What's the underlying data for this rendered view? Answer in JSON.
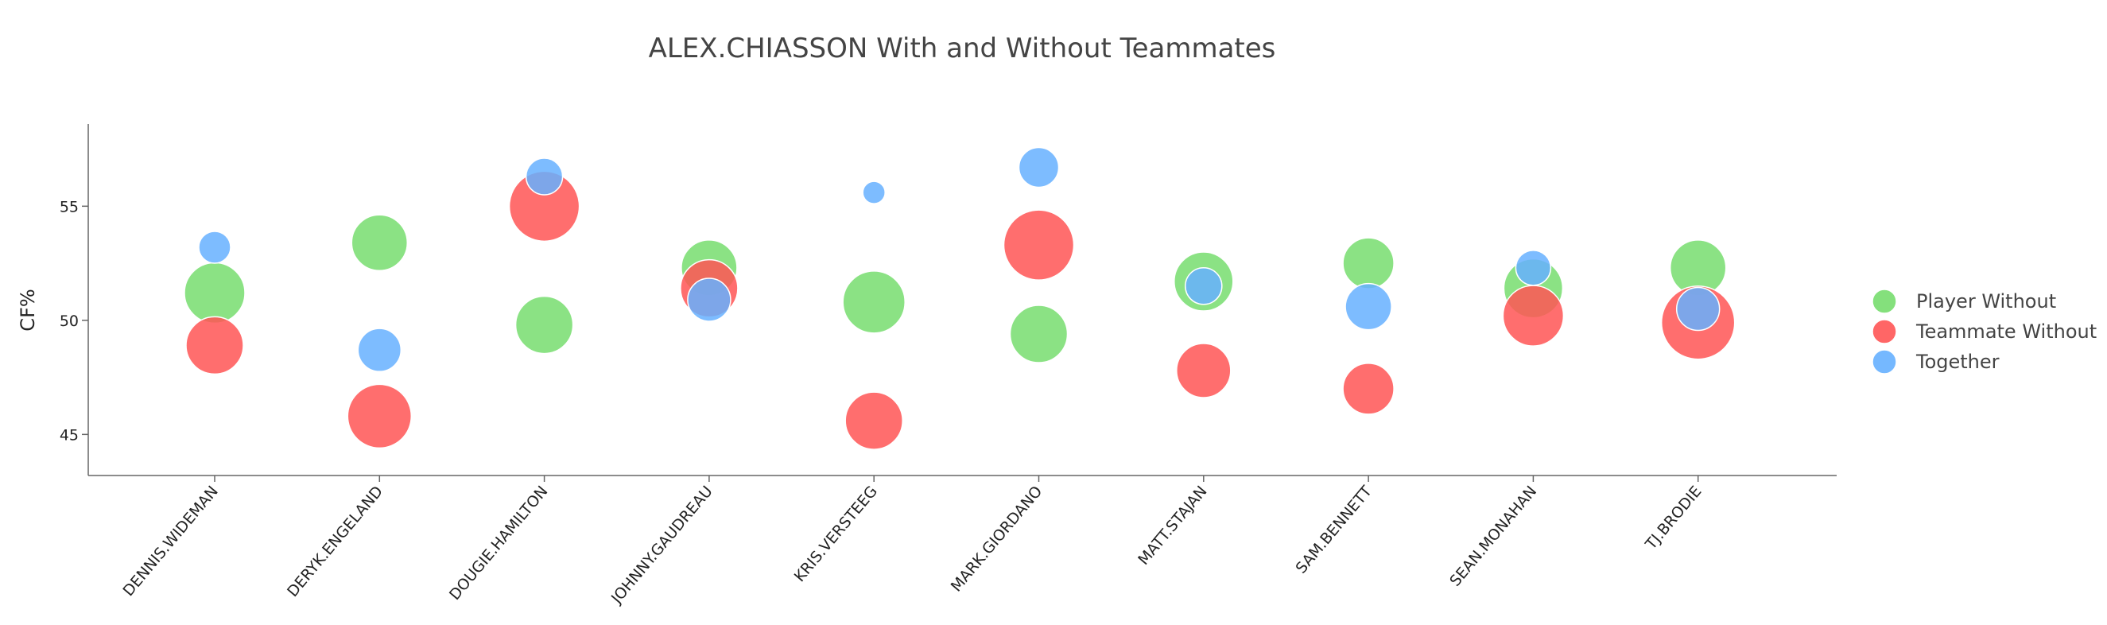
{
  "chart_data": {
    "type": "scatter",
    "title": "ALEX.CHIASSON With and Without Teammates",
    "xlabel": "",
    "ylabel": "CF%",
    "ylim": [
      43.2,
      58.6
    ],
    "yticks": [
      45,
      50,
      55
    ],
    "categories": [
      "DENNIS.WIDEMAN",
      "DERYK.ENGELAND",
      "DOUGIE.HAMILTON",
      "JOHNNY.GAUDREAU",
      "KRIS.VERSTEEG",
      "MARK.GIORDANO",
      "MATT.STAJAN",
      "SAM.BENNETT",
      "SEAN.MONAHAN",
      "TJ.BRODIE"
    ],
    "legend_position": "right",
    "grid": false,
    "series": [
      {
        "name": "Player Without",
        "color": "#77dd6e",
        "values": [
          51.2,
          53.4,
          49.8,
          52.3,
          50.8,
          49.4,
          51.7,
          52.5,
          51.4,
          52.3
        ],
        "sizes": [
          38,
          35,
          36,
          35,
          39,
          36,
          37,
          32,
          37,
          35
        ]
      },
      {
        "name": "Teammate Without",
        "color": "#ff5555",
        "values": [
          48.9,
          45.8,
          55.0,
          51.4,
          45.6,
          53.3,
          47.8,
          47.0,
          50.2,
          49.9
        ],
        "sizes": [
          36,
          40,
          44,
          36,
          36,
          44,
          34,
          32,
          38,
          46
        ]
      },
      {
        "name": "Together",
        "color": "#66b0ff",
        "values": [
          53.2,
          48.7,
          56.3,
          50.9,
          55.6,
          56.7,
          51.5,
          50.6,
          52.3,
          50.5
        ],
        "sizes": [
          20,
          27,
          23,
          27,
          14,
          25,
          23,
          29,
          22,
          27
        ]
      }
    ]
  }
}
